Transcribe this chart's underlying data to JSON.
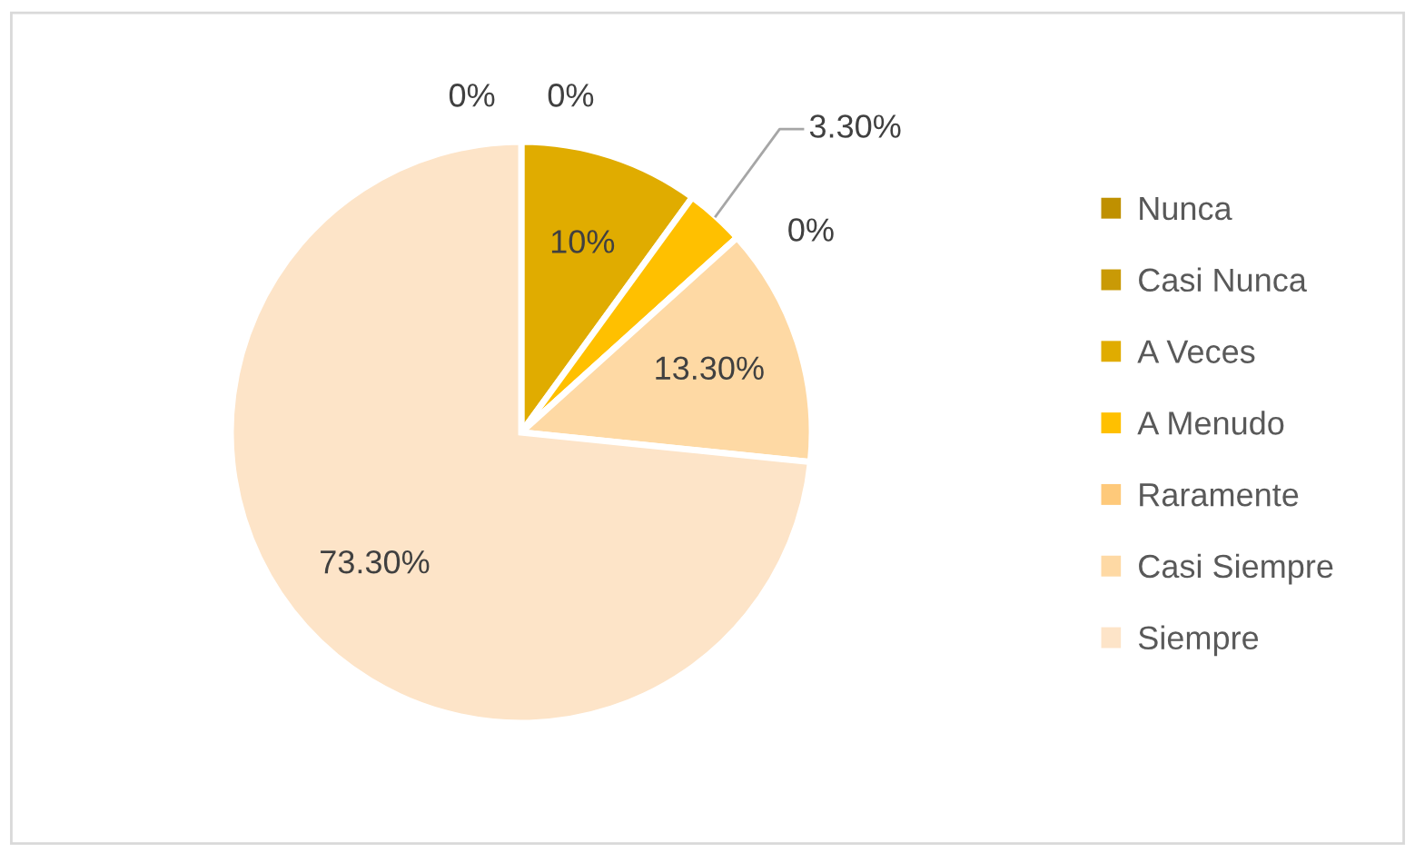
{
  "chart_data": {
    "type": "pie",
    "categories": [
      "Nunca",
      "Casi Nunca",
      "A Veces",
      "A Menudo",
      "Raramente",
      "Casi Siempre",
      "Siempre"
    ],
    "values": [
      0,
      0,
      10,
      3.3,
      0,
      13.3,
      73.3
    ],
    "colors": [
      "#bf9000",
      "#c99a06",
      "#e0ac00",
      "#ffc000",
      "#fec97a",
      "#fed9a4",
      "#fde4c8"
    ],
    "value_labels": [
      "0%",
      "0%",
      "10%",
      "3.30%",
      "0%",
      "13.30%",
      "73.30%"
    ],
    "legend": "right"
  }
}
